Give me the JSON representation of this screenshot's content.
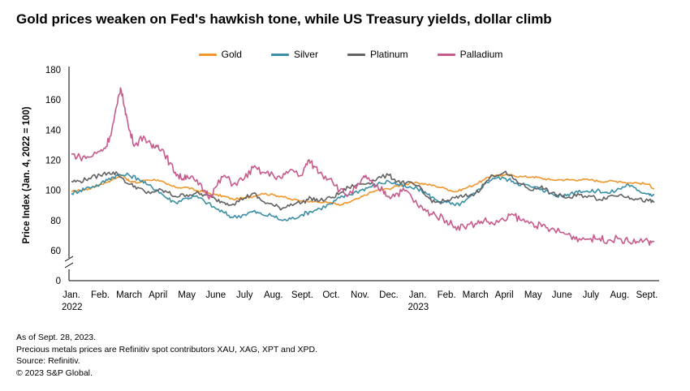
{
  "header": {
    "title": "Gold prices weaken on Fed's hawkish tone, while US Treasury yields, dollar climb"
  },
  "notes": [
    "As of Sept. 28, 2023.",
    "Precious metals prices are Refinitiv spot contributors XAU, XAG, XPT and XPD.",
    "Source: Refinitiv.",
    "© 2023 S&P Global."
  ],
  "chart_data": {
    "type": "line",
    "title": "Gold prices weaken on Fed's hawkish tone, while US Treasury yields, dollar climb",
    "ylabel": "Price Index (Jan. 4, 2022 = 100)",
    "xlabel": "",
    "ylim": [
      0,
      180
    ],
    "y_axis_break": [
      0,
      60
    ],
    "yticks": [
      "0",
      "60",
      "80",
      "100",
      "120",
      "140",
      "160",
      "180"
    ],
    "x_ticks": [
      {
        "label": "Jan.",
        "sub": "2022"
      },
      {
        "label": "Feb.",
        "sub": ""
      },
      {
        "label": "March",
        "sub": ""
      },
      {
        "label": "April",
        "sub": ""
      },
      {
        "label": "May",
        "sub": ""
      },
      {
        "label": "June",
        "sub": ""
      },
      {
        "label": "July",
        "sub": ""
      },
      {
        "label": "Aug.",
        "sub": ""
      },
      {
        "label": "Sept.",
        "sub": ""
      },
      {
        "label": "Oct.",
        "sub": ""
      },
      {
        "label": "Nov.",
        "sub": ""
      },
      {
        "label": "Dec.",
        "sub": ""
      },
      {
        "label": "Jan.",
        "sub": "2023"
      },
      {
        "label": "Feb.",
        "sub": ""
      },
      {
        "label": "March",
        "sub": ""
      },
      {
        "label": "April",
        "sub": ""
      },
      {
        "label": "May",
        "sub": ""
      },
      {
        "label": "June",
        "sub": ""
      },
      {
        "label": "July",
        "sub": ""
      },
      {
        "label": "Aug.",
        "sub": ""
      },
      {
        "label": "Sept.",
        "sub": ""
      }
    ],
    "legend_position": "top-center",
    "grid": false,
    "x_unit": "month index (0 = Jan. 2022)",
    "series": [
      {
        "name": "Gold",
        "color": "#F0962C",
        "points": [
          [
            0,
            99
          ],
          [
            0.3,
            100
          ],
          [
            0.6,
            101
          ],
          [
            1,
            104
          ],
          [
            1.3,
            106
          ],
          [
            1.5,
            108
          ],
          [
            1.8,
            110
          ],
          [
            2,
            106
          ],
          [
            2.3,
            105
          ],
          [
            2.6,
            107
          ],
          [
            3,
            107
          ],
          [
            3.3,
            104
          ],
          [
            3.6,
            102
          ],
          [
            4,
            102
          ],
          [
            4.3,
            100
          ],
          [
            4.6,
            99
          ],
          [
            5,
            97
          ],
          [
            5.3,
            96
          ],
          [
            5.6,
            94
          ],
          [
            6,
            95
          ],
          [
            6.3,
            96
          ],
          [
            6.6,
            98
          ],
          [
            7,
            97
          ],
          [
            7.3,
            96
          ],
          [
            7.6,
            94
          ],
          [
            8,
            93
          ],
          [
            8.3,
            93
          ],
          [
            8.6,
            92
          ],
          [
            9,
            92
          ],
          [
            9.3,
            90
          ],
          [
            9.6,
            92
          ],
          [
            10,
            95
          ],
          [
            10.3,
            98
          ],
          [
            10.6,
            100
          ],
          [
            11,
            101
          ],
          [
            11.3,
            103
          ],
          [
            11.6,
            104
          ],
          [
            12,
            105
          ],
          [
            12.3,
            104
          ],
          [
            12.6,
            103
          ],
          [
            13,
            101
          ],
          [
            13.3,
            99
          ],
          [
            13.6,
            101
          ],
          [
            14,
            104
          ],
          [
            14.3,
            107
          ],
          [
            14.6,
            110
          ],
          [
            15,
            110
          ],
          [
            15.3,
            110
          ],
          [
            15.6,
            109
          ],
          [
            16,
            109
          ],
          [
            16.3,
            108
          ],
          [
            16.6,
            107
          ],
          [
            17,
            107
          ],
          [
            17.3,
            107
          ],
          [
            17.6,
            107
          ],
          [
            18,
            107
          ],
          [
            18.3,
            106
          ],
          [
            18.6,
            106
          ],
          [
            19,
            106
          ],
          [
            19.3,
            105
          ],
          [
            19.6,
            105
          ],
          [
            20,
            104
          ],
          [
            20.2,
            101
          ]
        ]
      },
      {
        "name": "Silver",
        "color": "#3A8EA5",
        "points": [
          [
            0,
            98
          ],
          [
            0.3,
            100
          ],
          [
            0.6,
            102
          ],
          [
            1,
            104
          ],
          [
            1.3,
            108
          ],
          [
            1.6,
            110
          ],
          [
            2,
            110
          ],
          [
            2.3,
            108
          ],
          [
            2.6,
            104
          ],
          [
            3,
            100
          ],
          [
            3.3,
            95
          ],
          [
            3.6,
            92
          ],
          [
            4,
            95
          ],
          [
            4.3,
            96
          ],
          [
            4.6,
            93
          ],
          [
            5,
            88
          ],
          [
            5.3,
            85
          ],
          [
            5.6,
            82
          ],
          [
            6,
            84
          ],
          [
            6.3,
            86
          ],
          [
            6.6,
            84
          ],
          [
            7,
            83
          ],
          [
            7.3,
            80
          ],
          [
            7.6,
            81
          ],
          [
            8,
            84
          ],
          [
            8.3,
            86
          ],
          [
            8.6,
            88
          ],
          [
            9,
            91
          ],
          [
            9.3,
            95
          ],
          [
            9.6,
            97
          ],
          [
            10,
            100
          ],
          [
            10.3,
            102
          ],
          [
            10.6,
            104
          ],
          [
            11,
            106
          ],
          [
            11.3,
            104
          ],
          [
            11.6,
            102
          ],
          [
            12,
            101
          ],
          [
            12.3,
            98
          ],
          [
            12.6,
            94
          ],
          [
            13,
            92
          ],
          [
            13.3,
            90
          ],
          [
            13.6,
            92
          ],
          [
            14,
            98
          ],
          [
            14.3,
            104
          ],
          [
            14.6,
            108
          ],
          [
            15,
            108
          ],
          [
            15.3,
            106
          ],
          [
            15.6,
            104
          ],
          [
            16,
            102
          ],
          [
            16.3,
            101
          ],
          [
            16.6,
            98
          ],
          [
            17,
            96
          ],
          [
            17.3,
            98
          ],
          [
            17.6,
            100
          ],
          [
            18,
            99
          ],
          [
            18.3,
            100
          ],
          [
            18.6,
            98
          ],
          [
            19,
            101
          ],
          [
            19.3,
            104
          ],
          [
            19.6,
            100
          ],
          [
            20,
            98
          ],
          [
            20.2,
            97
          ]
        ]
      },
      {
        "name": "Platinum",
        "color": "#626262",
        "points": [
          [
            0,
            106
          ],
          [
            0.3,
            106
          ],
          [
            0.6,
            108
          ],
          [
            1,
            110
          ],
          [
            1.3,
            112
          ],
          [
            1.6,
            111
          ],
          [
            2,
            104
          ],
          [
            2.3,
            102
          ],
          [
            2.6,
            98
          ],
          [
            3,
            100
          ],
          [
            3.3,
            99
          ],
          [
            3.6,
            96
          ],
          [
            4,
            97
          ],
          [
            4.3,
            98
          ],
          [
            4.6,
            97
          ],
          [
            5,
            94
          ],
          [
            5.3,
            92
          ],
          [
            5.6,
            91
          ],
          [
            6,
            95
          ],
          [
            6.3,
            98
          ],
          [
            6.6,
            93
          ],
          [
            7,
            90
          ],
          [
            7.3,
            88
          ],
          [
            7.6,
            91
          ],
          [
            8,
            92
          ],
          [
            8.3,
            95
          ],
          [
            8.6,
            93
          ],
          [
            9,
            95
          ],
          [
            9.3,
            98
          ],
          [
            9.6,
            102
          ],
          [
            10,
            104
          ],
          [
            10.3,
            105
          ],
          [
            10.6,
            108
          ],
          [
            11,
            110
          ],
          [
            11.3,
            106
          ],
          [
            11.6,
            105
          ],
          [
            12,
            103
          ],
          [
            12.3,
            96
          ],
          [
            12.6,
            92
          ],
          [
            13,
            93
          ],
          [
            13.3,
            95
          ],
          [
            13.6,
            96
          ],
          [
            14,
            98
          ],
          [
            14.3,
            104
          ],
          [
            14.6,
            110
          ],
          [
            15,
            112
          ],
          [
            15.3,
            108
          ],
          [
            15.6,
            104
          ],
          [
            16,
            100
          ],
          [
            16.3,
            103
          ],
          [
            16.6,
            98
          ],
          [
            17,
            96
          ],
          [
            17.3,
            95
          ],
          [
            17.6,
            97
          ],
          [
            18,
            96
          ],
          [
            18.3,
            94
          ],
          [
            18.6,
            96
          ],
          [
            19,
            97
          ],
          [
            19.3,
            96
          ],
          [
            19.6,
            94
          ],
          [
            20,
            93
          ],
          [
            20.2,
            92
          ]
        ]
      },
      {
        "name": "Palladium",
        "color": "#C75A8C",
        "points": [
          [
            0,
            124
          ],
          [
            0.3,
            122
          ],
          [
            0.6,
            122
          ],
          [
            1,
            126
          ],
          [
            1.2,
            129
          ],
          [
            1.4,
            140
          ],
          [
            1.6,
            158
          ],
          [
            1.7,
            168
          ],
          [
            1.85,
            155
          ],
          [
            2,
            140
          ],
          [
            2.2,
            130
          ],
          [
            2.5,
            136
          ],
          [
            2.8,
            128
          ],
          [
            3,
            130
          ],
          [
            3.2,
            126
          ],
          [
            3.4,
            118
          ],
          [
            3.6,
            112
          ],
          [
            3.8,
            108
          ],
          [
            4,
            110
          ],
          [
            4.3,
            106
          ],
          [
            4.6,
            100
          ],
          [
            4.8,
            96
          ],
          [
            5,
            102
          ],
          [
            5.3,
            110
          ],
          [
            5.6,
            104
          ],
          [
            6,
            108
          ],
          [
            6.3,
            115
          ],
          [
            6.6,
            112
          ],
          [
            7,
            110
          ],
          [
            7.3,
            108
          ],
          [
            7.6,
            114
          ],
          [
            8,
            110
          ],
          [
            8.2,
            120
          ],
          [
            8.4,
            116
          ],
          [
            8.7,
            110
          ],
          [
            9,
            108
          ],
          [
            9.3,
            100
          ],
          [
            9.6,
            97
          ],
          [
            10,
            104
          ],
          [
            10.2,
            110
          ],
          [
            10.5,
            102
          ],
          [
            10.8,
            100
          ],
          [
            11,
            96
          ],
          [
            11.3,
            98
          ],
          [
            11.6,
            100
          ],
          [
            12,
            90
          ],
          [
            12.3,
            86
          ],
          [
            12.6,
            84
          ],
          [
            13,
            80
          ],
          [
            13.3,
            76
          ],
          [
            13.6,
            76
          ],
          [
            14,
            78
          ],
          [
            14.3,
            80
          ],
          [
            14.6,
            78
          ],
          [
            15,
            80
          ],
          [
            15.3,
            84
          ],
          [
            15.6,
            80
          ],
          [
            16,
            78
          ],
          [
            16.3,
            76
          ],
          [
            16.6,
            74
          ],
          [
            17,
            72
          ],
          [
            17.3,
            70
          ],
          [
            17.6,
            68
          ],
          [
            18,
            68
          ],
          [
            18.3,
            68
          ],
          [
            18.6,
            67
          ],
          [
            19,
            68
          ],
          [
            19.3,
            66
          ],
          [
            19.6,
            66
          ],
          [
            20,
            66
          ],
          [
            20.2,
            66
          ]
        ]
      }
    ]
  }
}
